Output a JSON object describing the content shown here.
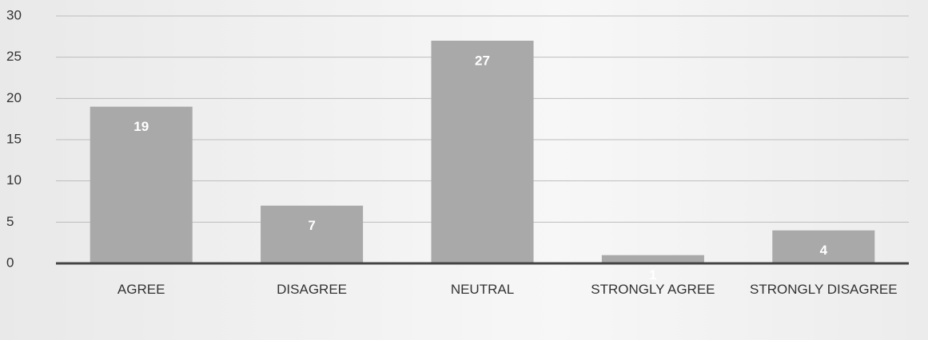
{
  "chart_data": {
    "type": "bar",
    "categories": [
      "AGREE",
      "DISAGREE",
      "NEUTRAL",
      "STRONGLY AGREE",
      "STRONGLY DISAGREE"
    ],
    "values": [
      19,
      7,
      27,
      1,
      4
    ],
    "color": "#a9a9a9",
    "ylim": [
      0,
      30
    ],
    "yticks": [
      0,
      5,
      10,
      15,
      20,
      25,
      30
    ],
    "grid": true
  }
}
